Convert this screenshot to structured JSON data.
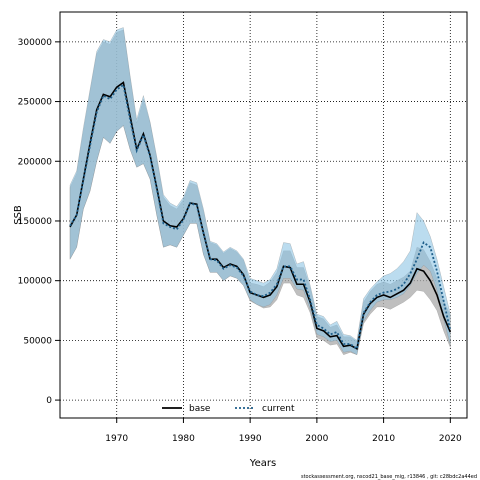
{
  "chart_data": {
    "type": "line",
    "xlabel": "Years",
    "ylabel": "SSB",
    "xlim": [
      1961.5,
      2022.5
    ],
    "ylim": [
      -15000,
      325000
    ],
    "xticks": [
      1970,
      1980,
      1990,
      2000,
      2010,
      2020
    ],
    "yticks": [
      0,
      50000,
      100000,
      150000,
      200000,
      250000,
      300000
    ],
    "grid": true,
    "legend_position": "bottom-center",
    "footer": "stockassessment.org, nscod21_base_mig, r13846 , git: c28bdc2a44ed",
    "colors": {
      "base": "#000000",
      "base_band": "#a9a9a9",
      "current": "#1f5f8b",
      "current_band": "#8ec4e4"
    },
    "series": [
      {
        "name": "base",
        "x": [
          1963,
          1964,
          1965,
          1966,
          1967,
          1968,
          1969,
          1970,
          1971,
          1972,
          1973,
          1974,
          1975,
          1976,
          1977,
          1978,
          1979,
          1980,
          1981,
          1982,
          1983,
          1984,
          1985,
          1986,
          1987,
          1988,
          1989,
          1990,
          1991,
          1992,
          1993,
          1994,
          1995,
          1996,
          1997,
          1998,
          1999,
          2000,
          2001,
          2002,
          2003,
          2004,
          2005,
          2006,
          2007,
          2008,
          2009,
          2010,
          2011,
          2012,
          2013,
          2014,
          2015,
          2016,
          2017,
          2018,
          2019,
          2020
        ],
        "values": [
          145000,
          155000,
          185000,
          215000,
          243000,
          256000,
          254000,
          262000,
          266000,
          238000,
          210000,
          223000,
          205000,
          178000,
          150000,
          146000,
          145000,
          152000,
          165000,
          164000,
          140000,
          118000,
          118000,
          111000,
          114000,
          112000,
          105000,
          90000,
          88000,
          86000,
          88000,
          95000,
          112000,
          111000,
          97000,
          97000,
          82000,
          60000,
          58000,
          53000,
          54000,
          45000,
          46000,
          43000,
          72000,
          81000,
          86000,
          88000,
          86000,
          89000,
          92000,
          98000,
          110000,
          108000,
          100000,
          88000,
          70000,
          57000
        ],
        "lower": [
          118000,
          128000,
          160000,
          175000,
          200000,
          220000,
          215000,
          225000,
          230000,
          210000,
          195000,
          198000,
          185000,
          155000,
          128000,
          130000,
          128000,
          138000,
          148000,
          148000,
          122000,
          107000,
          107000,
          100000,
          104000,
          102000,
          96000,
          83000,
          80000,
          77000,
          78000,
          84000,
          98000,
          98000,
          88000,
          86000,
          73000,
          52000,
          50000,
          46000,
          47000,
          38000,
          40000,
          38000,
          64000,
          72000,
          78000,
          78000,
          76000,
          79000,
          82000,
          86000,
          92000,
          91000,
          84000,
          75000,
          58000,
          44000
        ],
        "upper": [
          178000,
          190000,
          225000,
          258000,
          290000,
          300000,
          298000,
          308000,
          310000,
          270000,
          232000,
          252000,
          232000,
          202000,
          170000,
          163000,
          160000,
          168000,
          182000,
          180000,
          158000,
          132000,
          130000,
          123000,
          127000,
          124000,
          117000,
          98000,
          97000,
          95000,
          99000,
          107000,
          125000,
          125000,
          111000,
          111000,
          94000,
          70000,
          68000,
          61000,
          63000,
          53000,
          53000,
          49000,
          82000,
          91000,
          97000,
          99000,
          97000,
          100000,
          103000,
          108000,
          128000,
          126000,
          116000,
          102000,
          83000,
          71000
        ]
      },
      {
        "name": "current",
        "x": [
          1963,
          1964,
          1965,
          1966,
          1967,
          1968,
          1969,
          1970,
          1971,
          1972,
          1973,
          1974,
          1975,
          1976,
          1977,
          1978,
          1979,
          1980,
          1981,
          1982,
          1983,
          1984,
          1985,
          1986,
          1987,
          1988,
          1989,
          1990,
          1991,
          1992,
          1993,
          1994,
          1995,
          1996,
          1997,
          1998,
          1999,
          2000,
          2001,
          2002,
          2003,
          2004,
          2005,
          2006,
          2007,
          2008,
          2009,
          2010,
          2011,
          2012,
          2013,
          2014,
          2015,
          2016,
          2017,
          2018,
          2019,
          2020
        ],
        "values": [
          146000,
          155000,
          184000,
          213000,
          241000,
          255000,
          252000,
          260000,
          264000,
          235000,
          209000,
          222000,
          204000,
          177000,
          148000,
          145000,
          143000,
          151000,
          165000,
          163000,
          140000,
          118000,
          117000,
          110000,
          113000,
          111000,
          104000,
          91000,
          88000,
          87000,
          90000,
          97000,
          112000,
          112000,
          101000,
          101000,
          84000,
          63000,
          60000,
          55000,
          57000,
          47000,
          47000,
          43000,
          73000,
          82000,
          88000,
          90000,
          91000,
          93000,
          97000,
          106000,
          118000,
          132000,
          128000,
          108000,
          83000,
          58000
        ],
        "lower": [
          118000,
          128000,
          160000,
          175000,
          200000,
          220000,
          215000,
          225000,
          230000,
          210000,
          195000,
          198000,
          185000,
          155000,
          128000,
          130000,
          128000,
          138000,
          148000,
          148000,
          122000,
          107000,
          107000,
          100000,
          104000,
          102000,
          96000,
          84000,
          80000,
          78000,
          80000,
          88000,
          102000,
          102000,
          93000,
          92000,
          76000,
          55000,
          53000,
          49000,
          50000,
          40000,
          41000,
          38000,
          66000,
          75000,
          82000,
          84000,
          84000,
          86000,
          89000,
          96000,
          106000,
          113000,
          108000,
          92000,
          68000,
          46000
        ],
        "upper": [
          180000,
          192000,
          228000,
          260000,
          292000,
          302000,
          300000,
          310000,
          312000,
          272000,
          235000,
          255000,
          233000,
          204000,
          172000,
          165000,
          162000,
          170000,
          184000,
          182000,
          160000,
          133000,
          131000,
          124000,
          128000,
          125000,
          118000,
          102000,
          100000,
          98000,
          101000,
          110000,
          132000,
          131000,
          114000,
          116000,
          96000,
          72000,
          70000,
          63000,
          66000,
          55000,
          54000,
          50000,
          85000,
          93000,
          99000,
          104000,
          106000,
          110000,
          116000,
          125000,
          157000,
          150000,
          137000,
          118000,
          95000,
          72000
        ]
      }
    ]
  }
}
